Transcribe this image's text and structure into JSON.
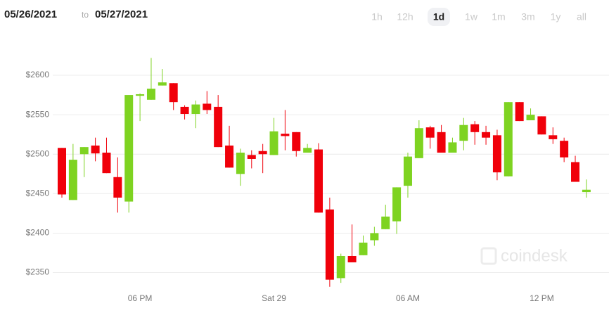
{
  "header": {
    "from": "05/26/2021",
    "to_word": "to",
    "to": "05/27/2021",
    "ranges": [
      "1h",
      "12h",
      "1d",
      "1w",
      "1m",
      "3m",
      "1y",
      "all"
    ],
    "selected_range": "1d"
  },
  "watermark": "coindesk",
  "chart_data": {
    "type": "candlestick",
    "categories": [
      null,
      null,
      null,
      null,
      null,
      null,
      null,
      "06 PM",
      null,
      null,
      null,
      null,
      null,
      null,
      null,
      null,
      null,
      null,
      null,
      "Sat 29",
      null,
      null,
      null,
      null,
      null,
      null,
      null,
      null,
      null,
      null,
      null,
      "06 AM",
      null,
      null,
      null,
      null,
      null,
      null,
      null,
      null,
      null,
      null,
      null,
      "12 PM",
      null,
      null,
      null,
      null
    ],
    "open": [
      2508,
      2442,
      2500,
      2511,
      2502,
      2471,
      2440,
      2574,
      2569,
      2587,
      2590,
      2560,
      2551,
      2564,
      2560,
      2511,
      2475,
      2499,
      2504,
      2499,
      2526,
      2528,
      2502,
      2506,
      2430,
      2343,
      2371,
      2372,
      2391,
      2405,
      2415,
      2460,
      2495,
      2534,
      2528,
      2502,
      2517,
      2538,
      2528,
      2524,
      2472,
      2566,
      2543,
      2548,
      2524,
      2517,
      2490,
      2452
    ],
    "high": [
      2508,
      2513,
      2509,
      2521,
      2521,
      2496,
      2575,
      2577,
      2622,
      2608,
      2590,
      2562,
      2568,
      2580,
      2575,
      2536,
      2507,
      2505,
      2513,
      2546,
      2556,
      2528,
      2513,
      2514,
      2445,
      2374,
      2411,
      2397,
      2408,
      2436,
      2458,
      2502,
      2543,
      2536,
      2537,
      2521,
      2546,
      2542,
      2536,
      2531,
      2566,
      2566,
      2558,
      2548,
      2534,
      2521,
      2498,
      2468
    ],
    "low": [
      2445,
      2442,
      2471,
      2491,
      2476,
      2426,
      2426,
      2542,
      2569,
      2587,
      2556,
      2544,
      2533,
      2551,
      2509,
      2483,
      2460,
      2482,
      2476,
      2499,
      2505,
      2497,
      2502,
      2426,
      2332,
      2337,
      2363,
      2372,
      2384,
      2405,
      2399,
      2445,
      2495,
      2507,
      2502,
      2502,
      2505,
      2512,
      2512,
      2467,
      2472,
      2542,
      2543,
      2525,
      2513,
      2490,
      2465,
      2445
    ],
    "close": [
      2449,
      2493,
      2509,
      2501,
      2476,
      2445,
      2575,
      2576,
      2583,
      2591,
      2566,
      2551,
      2563,
      2556,
      2509,
      2483,
      2502,
      2494,
      2500,
      2529,
      2523,
      2504,
      2508,
      2426,
      2341,
      2371,
      2363,
      2388,
      2400,
      2421,
      2458,
      2497,
      2533,
      2521,
      2502,
      2515,
      2537,
      2528,
      2521,
      2477,
      2566,
      2542,
      2550,
      2525,
      2519,
      2496,
      2465,
      2455
    ],
    "up_color": "#7ed321",
    "down_color": "#f0000a",
    "ylim": [
      2330,
      2633
    ],
    "yticks": [
      {
        "value": 2350,
        "label": "$2350"
      },
      {
        "value": 2400,
        "label": "$2400"
      },
      {
        "value": 2450,
        "label": "$2450"
      },
      {
        "value": 2500,
        "label": "$2500"
      },
      {
        "value": 2550,
        "label": "$2550"
      },
      {
        "value": 2600,
        "label": "$2600"
      }
    ],
    "grid": true
  }
}
